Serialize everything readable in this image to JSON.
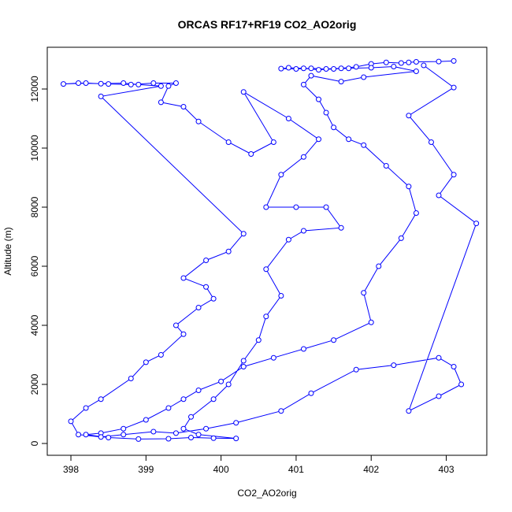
{
  "chart_data": {
    "type": "line",
    "title": "ORCAS RF17+RF19 CO2_AO2orig",
    "xlabel": "CO2_AO2orig",
    "ylabel": "Altitude (m)",
    "color": "#0000ff",
    "markers": true,
    "xlim": [
      397.685,
      403.54
    ],
    "xticks": [
      398,
      399,
      400,
      401,
      402,
      403
    ],
    "ylim": [
      -400,
      13413
    ],
    "yticks": [
      0,
      2000,
      4000,
      6000,
      8000,
      10000,
      12000
    ],
    "x": [
      403.1,
      402.9,
      402.6,
      402.5,
      402.4,
      402.2,
      402.0,
      401.8,
      401.6,
      401.4,
      401.2,
      401.0,
      400.8,
      400.9,
      401.1,
      401.3,
      401.5,
      401.7,
      402.0,
      402.3,
      402.6,
      401.9,
      401.6,
      401.2,
      401.1,
      401.3,
      401.4,
      401.5,
      401.7,
      401.9,
      402.2,
      402.5,
      402.6,
      402.4,
      402.1,
      401.9,
      402.0,
      401.5,
      401.1,
      400.7,
      400.3,
      400.0,
      399.7,
      399.5,
      399.3,
      399.0,
      398.7,
      398.4,
      398.2,
      398.5,
      398.9,
      399.3,
      399.6,
      399.9,
      400.2,
      399.7,
      399.5,
      399.6,
      399.9,
      400.1,
      400.3,
      400.5,
      400.6,
      400.8,
      400.6,
      400.9,
      401.1,
      401.6,
      401.4,
      401.0,
      400.6,
      400.8,
      401.1,
      401.3,
      400.9,
      400.3,
      400.7,
      400.4,
      400.1,
      399.7,
      399.5,
      399.2,
      399.3,
      399.4,
      399.1,
      398.8,
      398.5,
      398.2,
      397.9,
      398.1,
      398.4,
      398.7,
      398.9,
      399.2,
      398.4,
      400.3,
      400.1,
      399.8,
      399.5,
      399.8,
      399.9,
      399.7,
      399.4,
      399.5,
      399.2,
      399.0,
      398.8,
      398.4,
      398.2,
      398.0,
      398.1,
      398.4,
      398.7,
      399.1,
      399.4,
      399.8,
      400.2,
      400.8,
      401.2,
      401.8,
      402.3,
      402.9,
      403.1,
      403.2,
      402.9,
      402.5,
      403.4,
      402.9,
      403.1,
      402.8,
      402.5,
      403.1,
      402.7
    ],
    "values": [
      12950,
      12930,
      12920,
      12900,
      12880,
      12900,
      12850,
      12750,
      12700,
      12680,
      12700,
      12680,
      12690,
      12720,
      12700,
      12650,
      12680,
      12700,
      12720,
      12760,
      12600,
      12400,
      12250,
      12450,
      12150,
      11650,
      11200,
      10700,
      10300,
      10100,
      9400,
      8700,
      7800,
      6950,
      6000,
      5100,
      4100,
      3500,
      3200,
      2900,
      2600,
      2100,
      1800,
      1500,
      1200,
      800,
      500,
      350,
      300,
      200,
      150,
      160,
      200,
      180,
      170,
      300,
      500,
      900,
      1500,
      2000,
      2800,
      3500,
      4300,
      5000,
      5900,
      6900,
      7200,
      7300,
      8000,
      8000,
      8000,
      9100,
      9700,
      10300,
      11000,
      11900,
      10200,
      9800,
      10200,
      10900,
      11400,
      11550,
      12100,
      12200,
      12200,
      12150,
      12170,
      12200,
      12170,
      12200,
      12180,
      12200,
      12150,
      12100,
      11750,
      7100,
      6500,
      6200,
      5600,
      5300,
      4900,
      4600,
      4000,
      3700,
      3000,
      2750,
      2200,
      1500,
      1200,
      750,
      300,
      220,
      300,
      400,
      350,
      500,
      700,
      1100,
      1700,
      2500,
      2650,
      2900,
      2600,
      2000,
      1600,
      1100,
      7450,
      8400,
      9100,
      10200,
      11100,
      12050,
      12800
    ]
  }
}
